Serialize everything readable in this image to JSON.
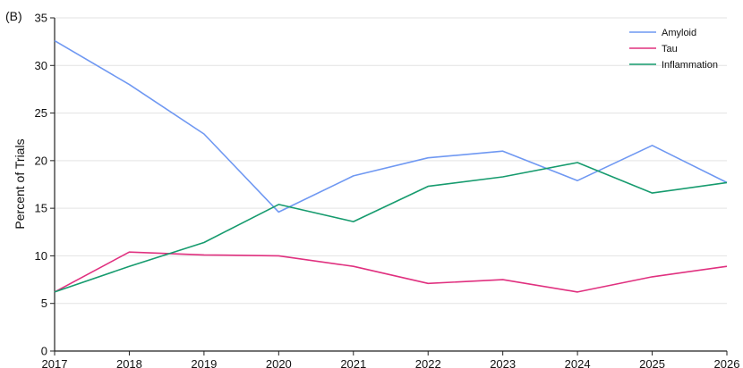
{
  "panel_label": "(B)",
  "chart_data": {
    "type": "line",
    "title": "",
    "xlabel": "",
    "ylabel": "Percent of Trials",
    "x": [
      2017,
      2018,
      2019,
      2020,
      2021,
      2022,
      2023,
      2024,
      2025,
      2026
    ],
    "x_tick_labels": [
      "2017",
      "2018",
      "2019",
      "2020",
      "2021",
      "2022",
      "2023",
      "2024",
      "2025",
      "2026"
    ],
    "y_ticks": [
      0,
      5,
      10,
      15,
      20,
      25,
      30,
      35
    ],
    "y_tick_labels": [
      "0",
      "5",
      "10",
      "15",
      "20",
      "25",
      "30",
      "35"
    ],
    "xlim": [
      2017,
      2026
    ],
    "ylim": [
      0,
      35
    ],
    "grid": "horizontal",
    "legend_position": "top-right",
    "series": [
      {
        "name": "Amyloid",
        "color": "#6f98f2",
        "values": [
          32.6,
          28.0,
          22.8,
          14.6,
          18.4,
          20.3,
          21.0,
          17.9,
          21.6,
          17.7
        ]
      },
      {
        "name": "Tau",
        "color": "#e0307f",
        "values": [
          6.2,
          10.4,
          10.1,
          10.0,
          8.9,
          7.1,
          7.5,
          6.2,
          7.8,
          8.9
        ]
      },
      {
        "name": "Inflammation",
        "color": "#169b6e",
        "values": [
          6.2,
          8.9,
          11.4,
          15.4,
          13.6,
          17.3,
          18.3,
          19.8,
          16.6,
          17.7
        ]
      }
    ]
  }
}
